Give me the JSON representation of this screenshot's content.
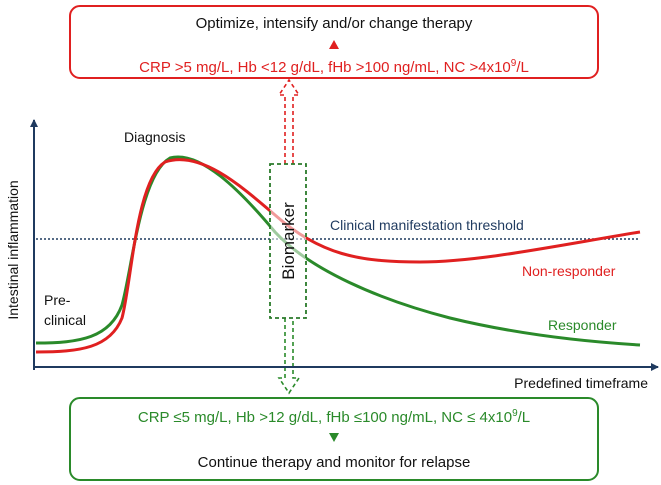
{
  "top_box": {
    "action": "Optimize, intensify and/or change therapy",
    "criteria_parts": [
      "CRP >5 mg/L, Hb <12 g/dL,  fHb >100 ng/mL, NC >4x10",
      "9",
      "/L"
    ],
    "color": "#e02020"
  },
  "bottom_box": {
    "criteria_parts": [
      "CRP ≤5 mg/L, Hb >12 g/dL, fHb ≤100 ng/mL, NC ≤ 4x10",
      "9",
      "/L"
    ],
    "action": "Continue therapy and monitor for relapse",
    "color": "#2a8a2a"
  },
  "plot": {
    "y_axis_label": "Intestinal inflammation",
    "x_axis_label": "Predefined timeframe",
    "diagnosis_label": "Diagnosis",
    "preclinical_label_1": "Pre-",
    "preclinical_label_2": "clinical",
    "threshold_label": "Clinical manifestation threshold",
    "non_responder_label": "Non-responder",
    "responder_label": "Responder",
    "biomarker_label": "Biomarker",
    "axis_color": "#1f3a5f",
    "threshold_color": "#1f3a5f",
    "non_responder_color": "#e02020",
    "responder_color": "#2a8a2a"
  }
}
